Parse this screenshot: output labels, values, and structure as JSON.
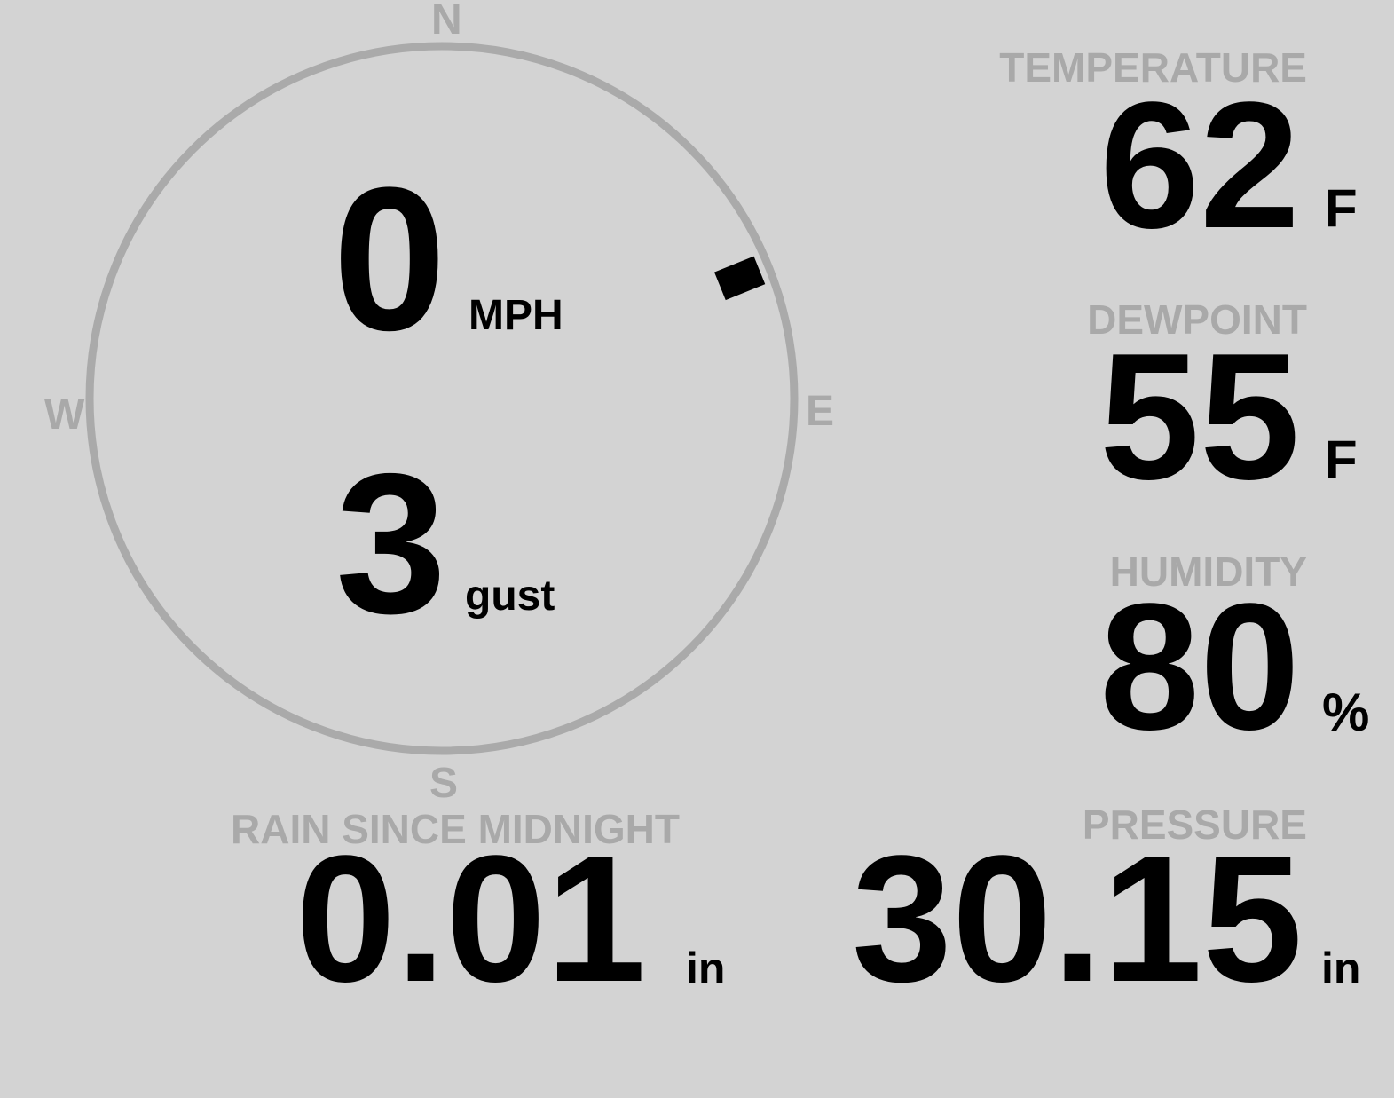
{
  "colors": {
    "background": "#d3d3d3",
    "label": "#a9a9a9",
    "value": "#000000",
    "compass_ring": "#aaaaaa"
  },
  "wind": {
    "compass": {
      "north": "N",
      "east": "E",
      "south": "S",
      "west": "W"
    },
    "direction_degrees": 68,
    "speed": "0",
    "speed_unit": "MPH",
    "gust": "3",
    "gust_unit": "gust"
  },
  "temperature": {
    "label": "TEMPERATURE",
    "value": "62",
    "unit": "F"
  },
  "dewpoint": {
    "label": "DEWPOINT",
    "value": "55",
    "unit": "F"
  },
  "humidity": {
    "label": "HUMIDITY",
    "value": "80",
    "unit": "%"
  },
  "rain": {
    "label": "RAIN SINCE MIDNIGHT",
    "value": "0.01",
    "unit": "in"
  },
  "pressure": {
    "label": "PRESSURE",
    "value": "30.15",
    "unit": "in"
  }
}
